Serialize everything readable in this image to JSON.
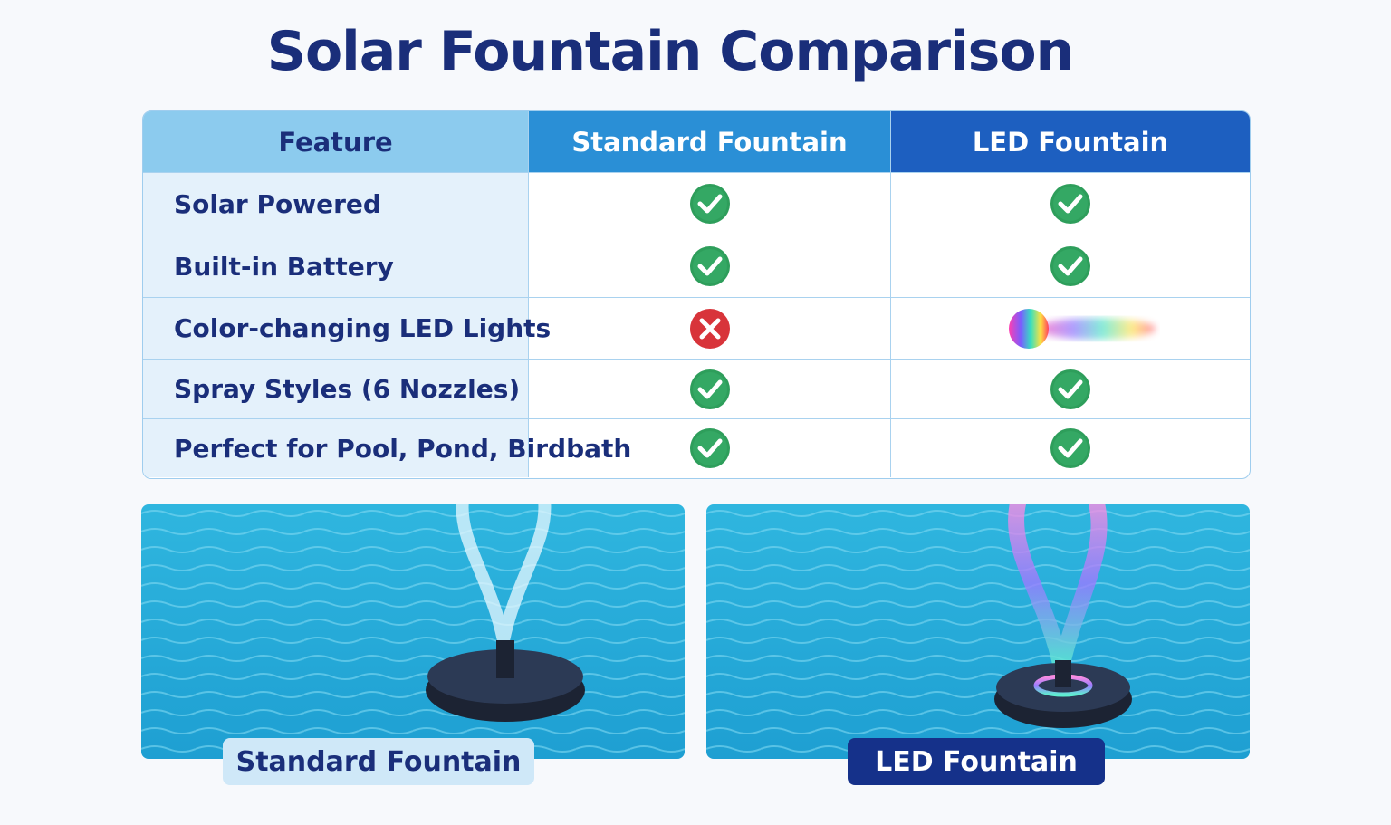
{
  "header": {
    "title": "Solar Fountain Comparison"
  },
  "table": {
    "columns": [
      "Feature",
      "Standard Fountain",
      "LED Fountain"
    ],
    "rows": [
      "Solar Powered",
      "Built-in Battery",
      "Color-changing LED Lights",
      "Spray Styles (6 Nozzles)",
      "Perfect for Pool, Pond, Birdbath"
    ]
  },
  "images": [
    {
      "caption": "Standard Fountain"
    },
    {
      "caption": "LED Fountain"
    }
  ]
}
